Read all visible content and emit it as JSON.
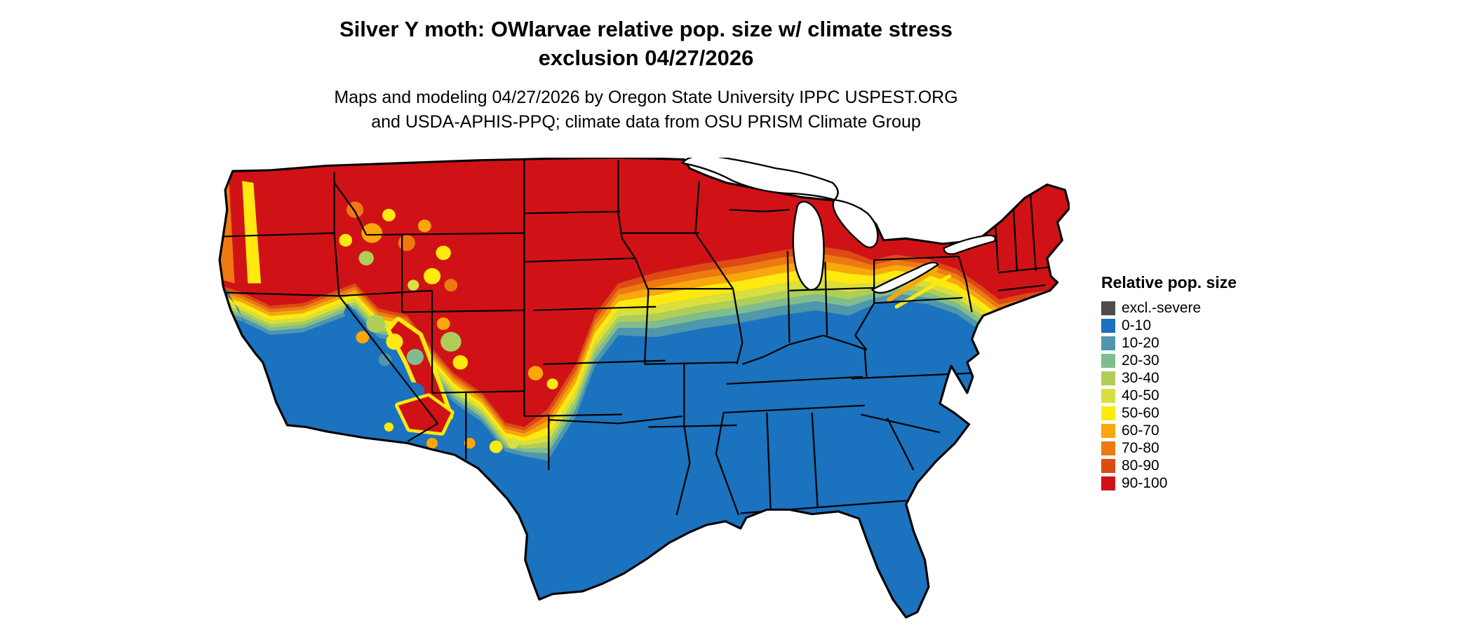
{
  "title": "Silver Y moth: OWlarvae relative pop. size w/ climate stress exclusion 04/27/2026",
  "subtitle": "Maps and modeling 04/27/2026 by Oregon State University IPPC USPEST.ORG and USDA-APHIS-PPQ; climate data from OSU PRISM Climate Group",
  "legend": {
    "title": "Relative pop. size",
    "items": [
      {
        "label": "excl.-severe",
        "color": "#4D4D4D"
      },
      {
        "label": "0-10",
        "color": "#1B72BE"
      },
      {
        "label": "10-20",
        "color": "#4F97AD"
      },
      {
        "label": "20-30",
        "color": "#7FBD8F"
      },
      {
        "label": "30-40",
        "color": "#AECE57"
      },
      {
        "label": "40-50",
        "color": "#D9DF3E"
      },
      {
        "label": "50-60",
        "color": "#FFE90F"
      },
      {
        "label": "60-70",
        "color": "#F9A70B"
      },
      {
        "label": "70-80",
        "color": "#EF7911"
      },
      {
        "label": "80-90",
        "color": "#DE4A12"
      },
      {
        "label": "90-100",
        "color": "#D01217"
      }
    ]
  }
}
